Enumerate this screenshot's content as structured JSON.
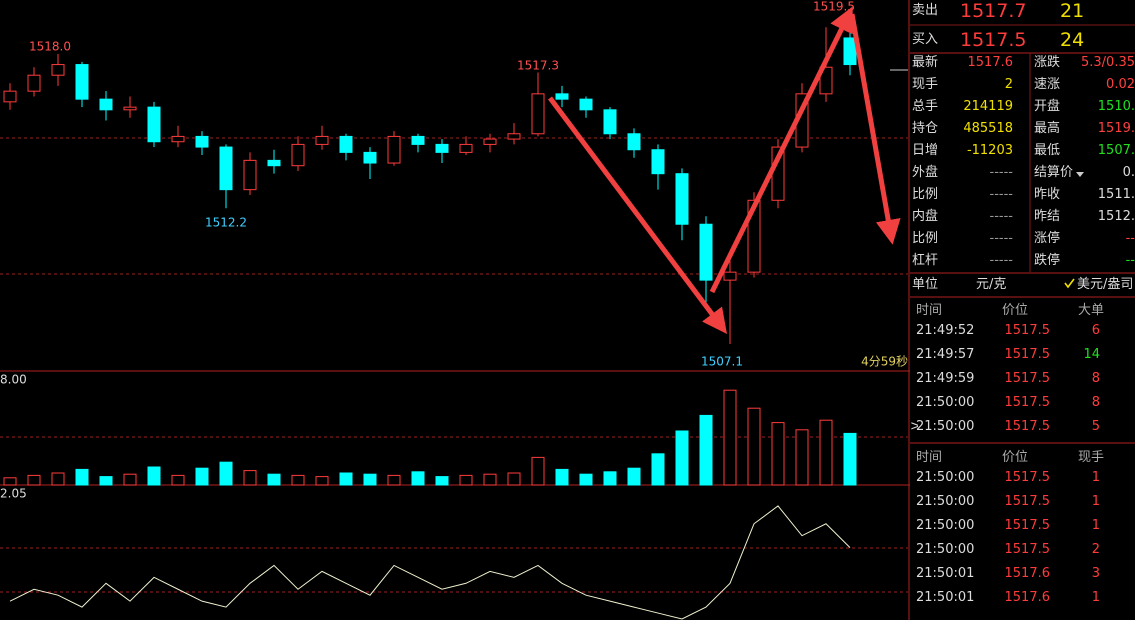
{
  "chart": {
    "candles": [
      [
        1516.2,
        1516.9,
        1515.9,
        1516.6
      ],
      [
        1516.6,
        1517.5,
        1516.4,
        1517.2
      ],
      [
        1517.2,
        1518.0,
        1516.8,
        1517.6
      ],
      [
        1517.6,
        1517.7,
        1516.0,
        1516.3
      ],
      [
        1516.3,
        1516.6,
        1515.5,
        1515.9
      ],
      [
        1515.9,
        1516.4,
        1515.6,
        1516.0
      ],
      [
        1516.0,
        1516.2,
        1514.5,
        1514.7
      ],
      [
        1514.7,
        1515.3,
        1514.5,
        1514.9
      ],
      [
        1514.9,
        1515.1,
        1514.2,
        1514.5
      ],
      [
        1514.5,
        1514.6,
        1512.2,
        1512.9
      ],
      [
        1512.9,
        1514.3,
        1512.7,
        1514.0
      ],
      [
        1514.0,
        1514.4,
        1513.5,
        1513.8
      ],
      [
        1513.8,
        1514.9,
        1513.6,
        1514.6
      ],
      [
        1514.6,
        1515.3,
        1514.4,
        1514.9
      ],
      [
        1514.9,
        1515.0,
        1514.0,
        1514.3
      ],
      [
        1514.3,
        1514.5,
        1513.3,
        1513.9
      ],
      [
        1513.9,
        1515.1,
        1513.8,
        1514.9
      ],
      [
        1514.9,
        1515.0,
        1514.3,
        1514.6
      ],
      [
        1514.6,
        1514.8,
        1513.9,
        1514.3
      ],
      [
        1514.3,
        1514.9,
        1514.2,
        1514.6
      ],
      [
        1514.6,
        1515.0,
        1514.3,
        1514.8
      ],
      [
        1514.8,
        1515.4,
        1514.6,
        1515.0
      ],
      [
        1515.0,
        1517.3,
        1514.9,
        1516.5
      ],
      [
        1516.5,
        1516.8,
        1516.0,
        1516.3
      ],
      [
        1516.3,
        1516.4,
        1515.6,
        1515.9
      ],
      [
        1515.9,
        1516.0,
        1514.8,
        1515.0
      ],
      [
        1515.0,
        1515.2,
        1514.1,
        1514.4
      ],
      [
        1514.4,
        1514.6,
        1512.9,
        1513.5
      ],
      [
        1513.5,
        1513.7,
        1511.0,
        1511.6
      ],
      [
        1511.6,
        1511.9,
        1508.4,
        1509.5
      ],
      [
        1509.5,
        1510.4,
        1507.1,
        1509.8
      ],
      [
        1509.8,
        1512.8,
        1509.6,
        1512.5
      ],
      [
        1512.5,
        1514.8,
        1512.2,
        1514.5
      ],
      [
        1514.5,
        1516.9,
        1514.3,
        1516.5
      ],
      [
        1516.5,
        1519.0,
        1516.2,
        1517.5
      ],
      [
        1518.6,
        1519.5,
        1517.2,
        1517.6
      ]
    ],
    "annotations": [
      "1518.0",
      "1512.2",
      "1517.3",
      "1507.1",
      "1519.5"
    ],
    "timer": "4分59秒",
    "volume_max_label": "8.00",
    "volumes": [
      0.6,
      0.8,
      1.0,
      1.3,
      0.7,
      0.9,
      1.5,
      0.8,
      1.4,
      1.9,
      1.2,
      0.9,
      0.8,
      0.7,
      1.0,
      0.9,
      0.8,
      1.1,
      0.7,
      0.8,
      0.9,
      1.0,
      2.3,
      1.3,
      0.9,
      1.1,
      1.4,
      2.6,
      4.5,
      5.8,
      7.9,
      6.4,
      5.2,
      4.6,
      5.4,
      4.3
    ],
    "oscillator_max_label": "2.05",
    "oscillator": [
      0.3,
      0.5,
      0.4,
      0.2,
      0.6,
      0.3,
      0.7,
      0.5,
      0.3,
      0.2,
      0.6,
      0.9,
      0.5,
      0.8,
      0.6,
      0.4,
      0.9,
      0.7,
      0.5,
      0.6,
      0.8,
      0.7,
      0.9,
      0.6,
      0.4,
      0.3,
      0.2,
      0.1,
      0.0,
      0.2,
      0.6,
      1.6,
      1.9,
      1.4,
      1.6,
      1.2
    ]
  },
  "quote": [
    [
      "卖出",
      "1517.7",
      "21"
    ],
    [
      "买入",
      "1517.5",
      "24"
    ]
  ],
  "stats": [
    [
      "最新",
      "1517.6",
      "涨跌",
      "5.3/0.35"
    ],
    [
      "现手",
      "2",
      "速涨",
      "0.02"
    ],
    [
      "总手",
      "214119",
      "开盘",
      "1510."
    ],
    [
      "持仓",
      "485518",
      "最高",
      "1519."
    ],
    [
      "日增",
      "-11203",
      "最低",
      "1507."
    ],
    [
      "外盘",
      "-----",
      "结算价",
      "0."
    ],
    [
      "比例",
      "-----",
      "昨收",
      "1511."
    ],
    [
      "内盘",
      "-----",
      "昨结",
      "1512."
    ],
    [
      "比例",
      "-----",
      "涨停",
      "--"
    ],
    [
      "杠杆",
      "-----",
      "跌停",
      "--"
    ]
  ],
  "unit": {
    "label": "单位",
    "option1": "元/克",
    "option2": "美元/盎司"
  },
  "big_trades": {
    "headers": [
      "时间",
      "价位",
      "大单"
    ],
    "rows": [
      [
        "21:49:52",
        "1517.5",
        "6"
      ],
      [
        "21:49:57",
        "1517.5",
        "14"
      ],
      [
        "21:49:59",
        "1517.5",
        "8"
      ],
      [
        "21:50:00",
        "1517.5",
        "8"
      ],
      [
        "21:50:00",
        "1517.5",
        "5"
      ]
    ],
    "cursor": ">"
  },
  "ticks": {
    "headers": [
      "时间",
      "价位",
      "现手"
    ],
    "rows": [
      [
        "21:50:00",
        "1517.5",
        "1"
      ],
      [
        "21:50:00",
        "1517.5",
        "1"
      ],
      [
        "21:50:00",
        "1517.5",
        "1"
      ],
      [
        "21:50:00",
        "1517.5",
        "2"
      ],
      [
        "21:50:01",
        "1517.6",
        "3"
      ],
      [
        "21:50:01",
        "1517.6",
        "1"
      ]
    ]
  }
}
